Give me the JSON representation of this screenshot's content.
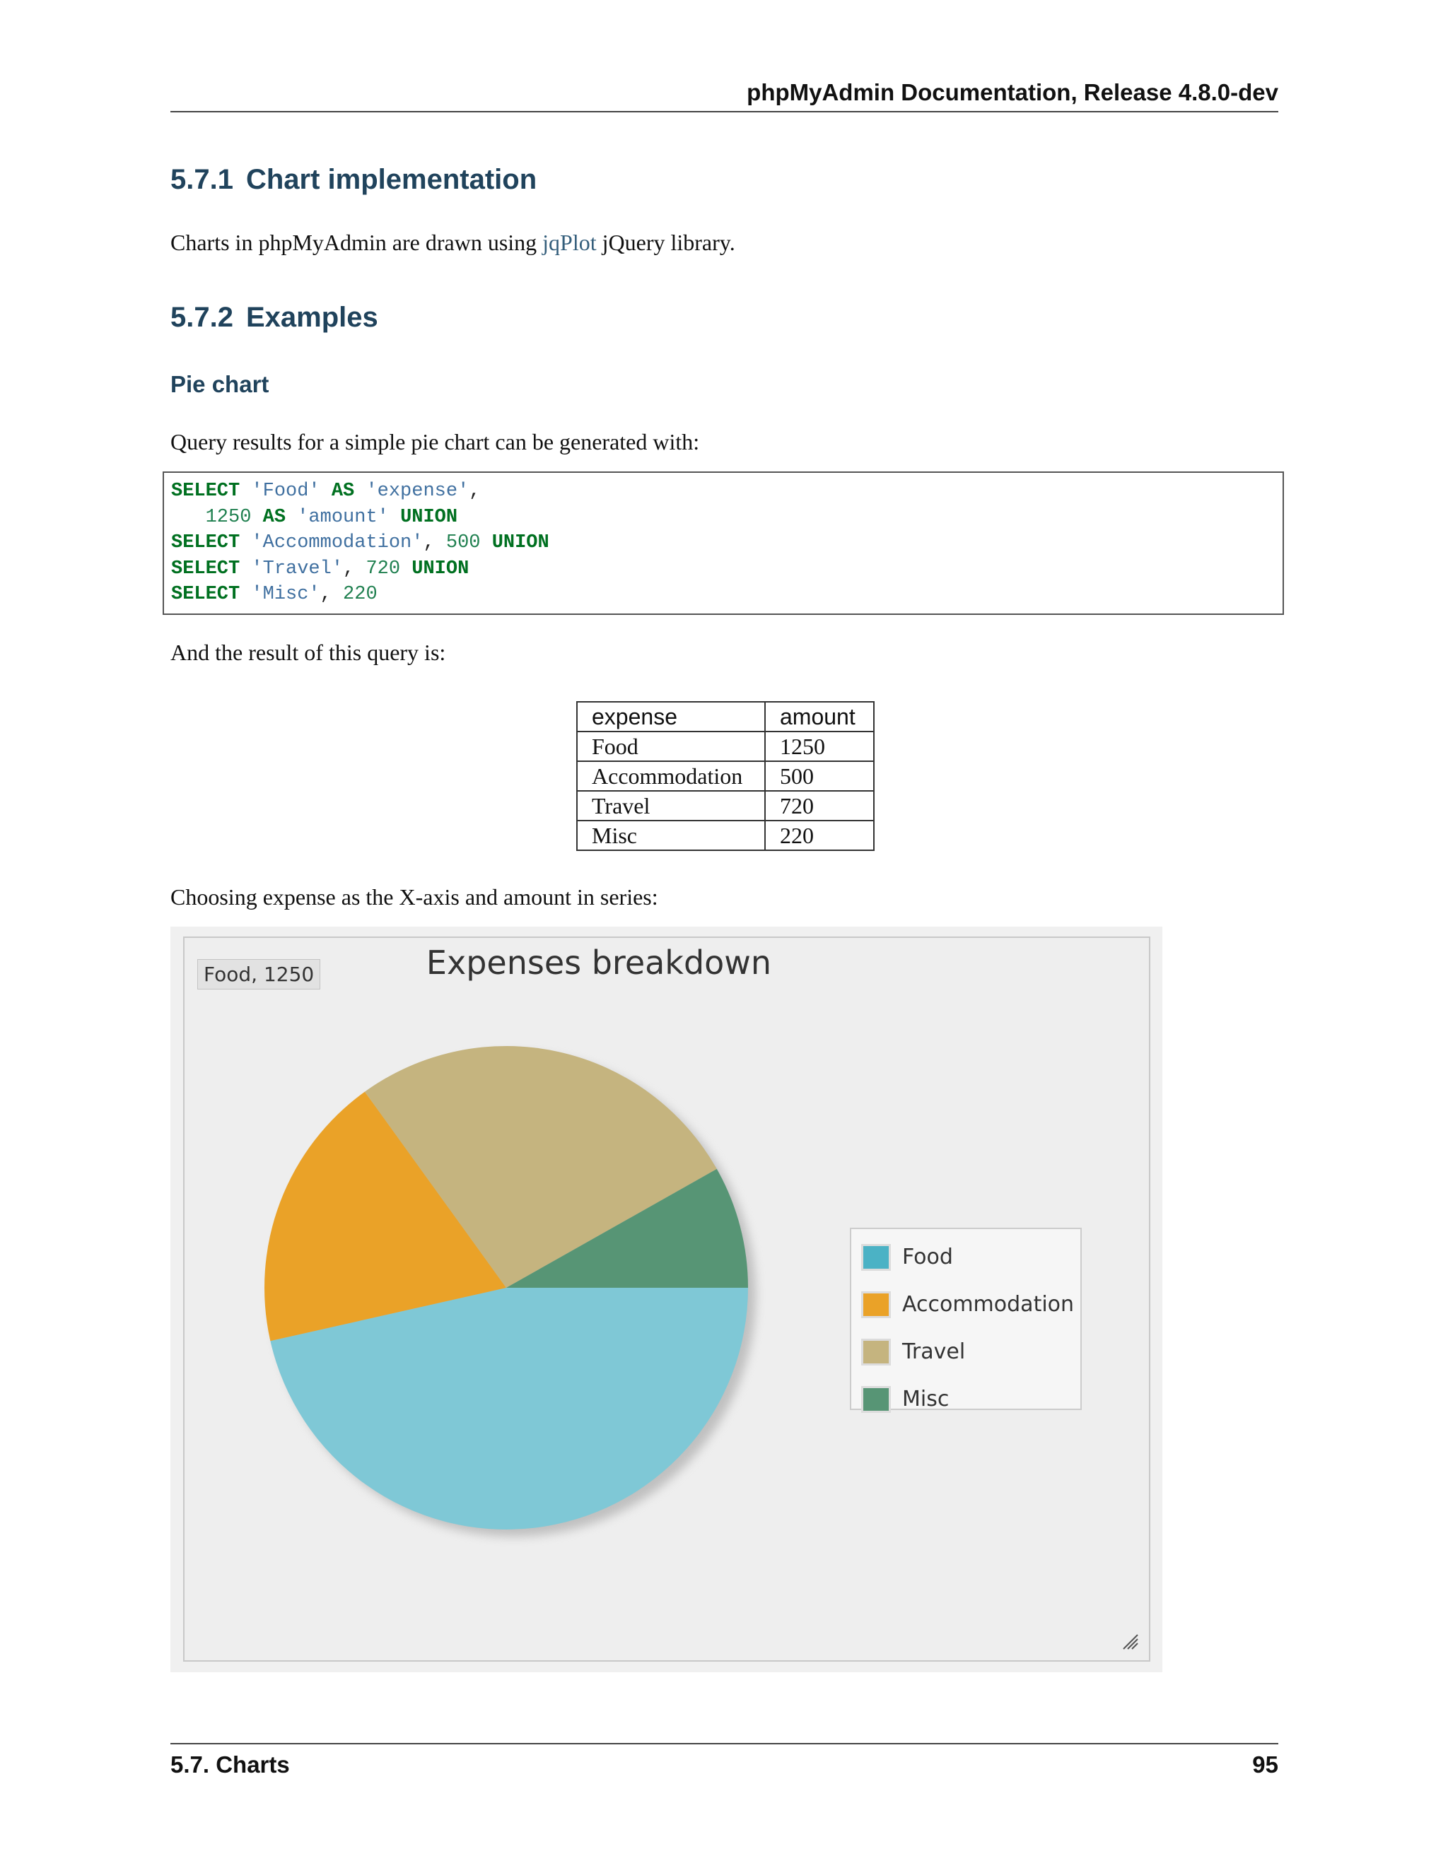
{
  "header": {
    "title": "phpMyAdmin Documentation, Release 4.8.0-dev"
  },
  "section_1": {
    "number": "5.7.1",
    "title": "Chart implementation"
  },
  "intro": {
    "before": "Charts in phpMyAdmin are drawn using ",
    "link": "jqPlot",
    "after": " jQuery library."
  },
  "section_2": {
    "number": "5.7.2",
    "title": "Examples"
  },
  "subsection": {
    "title": "Pie chart"
  },
  "query_intro": "Query results for a simple pie chart can be generated with:",
  "code": {
    "l1": {
      "kw1": "SELECT",
      "s1": "'Food'",
      "kw2": "AS",
      "s2": "'expense'",
      "p1": ","
    },
    "l2": {
      "indent": "   ",
      "n1": "1250",
      "kw1": "AS",
      "s1": "'amount'",
      "kw2": "UNION"
    },
    "l3": {
      "kw1": "SELECT",
      "s1": "'Accommodation'",
      "p1": ", ",
      "n1": "500",
      "kw2": "UNION"
    },
    "l4": {
      "kw1": "SELECT",
      "s1": "'Travel'",
      "p1": ", ",
      "n1": "720",
      "kw2": "UNION"
    },
    "l5": {
      "kw1": "SELECT",
      "s1": "'Misc'",
      "p1": ", ",
      "n1": "220"
    }
  },
  "result_intro": "And the result of this query is:",
  "result_table": {
    "headers": [
      "expense",
      "amount"
    ],
    "rows": [
      [
        "Food",
        "1250"
      ],
      [
        "Accommodation",
        "500"
      ],
      [
        "Travel",
        "720"
      ],
      [
        "Misc",
        "220"
      ]
    ]
  },
  "axis_intro": "Choosing expense as the X-axis and amount in series:",
  "chart_data": {
    "type": "pie",
    "title": "Expenses breakdown",
    "categories": [
      "Food",
      "Accommodation",
      "Travel",
      "Misc"
    ],
    "values": [
      1250,
      500,
      720,
      220
    ],
    "colors": [
      "#4bb2c5",
      "#eaa228",
      "#c5b47f",
      "#579575"
    ],
    "tooltip": "Food, 1250",
    "legend_position": "right"
  },
  "footer": {
    "left": "5.7.  Charts",
    "right": "95"
  }
}
